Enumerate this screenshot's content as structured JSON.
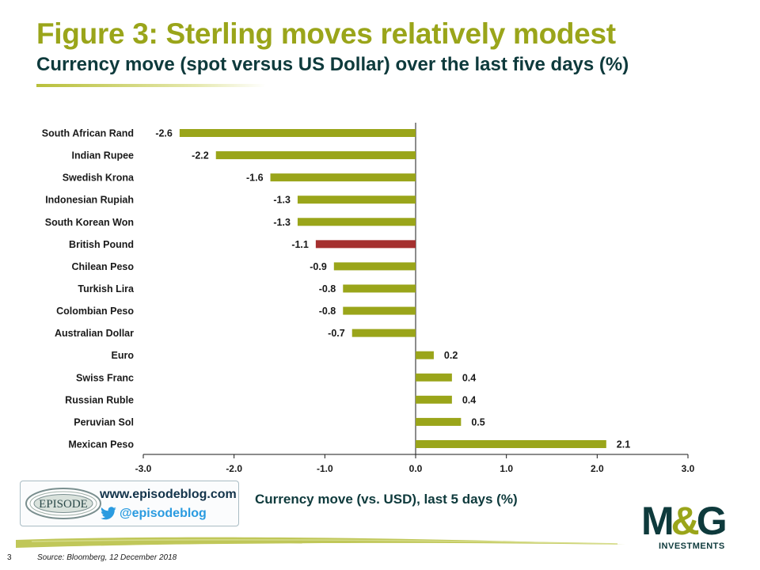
{
  "header": {
    "title": "Figure 3: Sterling moves relatively modest",
    "subtitle": "Currency move (spot versus US Dollar) over the last five days (%)"
  },
  "chart_data": {
    "type": "bar",
    "orientation": "horizontal",
    "categories": [
      "South African Rand",
      "Indian Rupee",
      "Swedish Krona",
      "Indonesian Rupiah",
      "South Korean Won",
      "British Pound",
      "Chilean Peso",
      "Turkish Lira",
      "Colombian Peso",
      "Australian Dollar",
      "Euro",
      "Swiss Franc",
      "Russian Ruble",
      "Peruvian Sol",
      "Mexican Peso"
    ],
    "values": [
      -2.6,
      -2.2,
      -1.6,
      -1.3,
      -1.3,
      -1.1,
      -0.9,
      -0.8,
      -0.8,
      -0.7,
      0.2,
      0.4,
      0.4,
      0.5,
      2.1
    ],
    "value_labels": [
      "-2.6",
      "-2.2",
      "-1.6",
      "-1.3",
      "-1.3",
      "-1.1",
      "-0.9",
      "-0.8",
      "-0.8",
      "-0.7",
      "0.2",
      "0.4",
      "0.4",
      "0.5",
      "2.1"
    ],
    "highlight_category": "British Pound",
    "xlim": [
      -3.0,
      3.0
    ],
    "xticks": [
      "-3.0",
      "-2.0",
      "-1.0",
      "0.0",
      "1.0",
      "2.0",
      "3.0"
    ],
    "xlabel": "Currency move (vs. USD), last 5 days (%)",
    "grid": false,
    "legend": "none",
    "colors": {
      "bar": "#9aa51a",
      "highlight": "#a5302f",
      "axis": "#1a1a1a"
    }
  },
  "branding": {
    "episode_logo_text": "EPISODE",
    "episode_url": "www.episodeblog.com",
    "twitter_handle": "@episodeblog",
    "company_logo": "M&G",
    "company_logo_parts": [
      "M",
      "&",
      "G"
    ],
    "company_sub": "INVESTMENTS"
  },
  "footer": {
    "page_number": "3",
    "source": "Source: Bloomberg, 12 December 2018"
  },
  "colors": {
    "title": "#9aa51a",
    "subtitle": "#0e3a3c",
    "twitter": "#2a9be0"
  }
}
